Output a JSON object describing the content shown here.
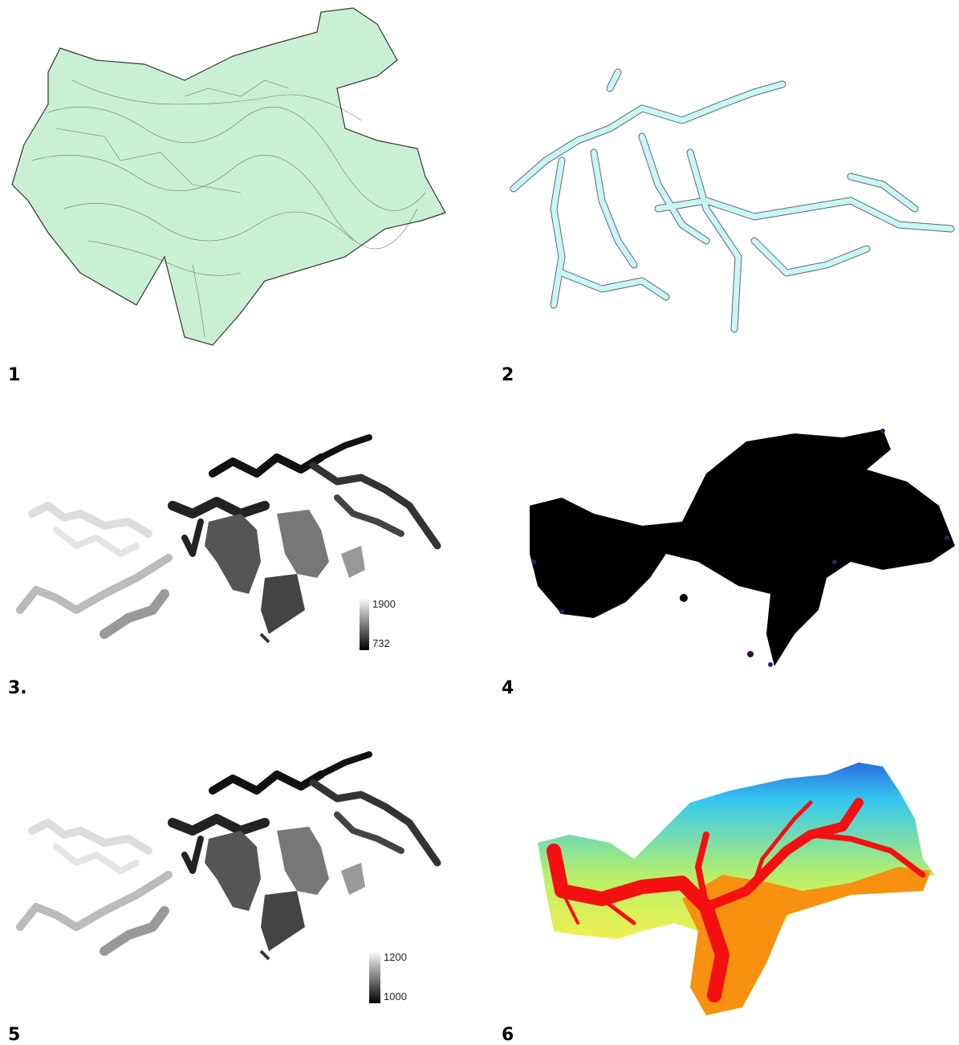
{
  "panels": [
    {
      "label": "1"
    },
    {
      "label": "2"
    },
    {
      "label": "3.",
      "legend": {
        "max": "1900",
        "min": "732"
      }
    },
    {
      "label": "4"
    },
    {
      "label": "5",
      "legend": {
        "max": "1200",
        "min": "1000"
      }
    },
    {
      "label": "6"
    }
  ]
}
